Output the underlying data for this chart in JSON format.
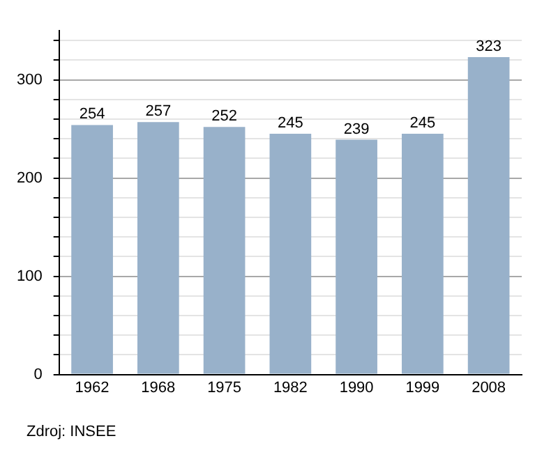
{
  "chart_data": {
    "type": "bar",
    "categories": [
      "1962",
      "1968",
      "1975",
      "1982",
      "1990",
      "1999",
      "2008"
    ],
    "values": [
      254,
      257,
      252,
      245,
      239,
      245,
      323
    ],
    "color": "#98b1ca",
    "ylim": [
      0,
      350
    ],
    "yticks": [
      0,
      {
        "value": 20,
        "label": null
      },
      {
        "value": 40,
        "label": null
      },
      {
        "value": 60,
        "label": null
      },
      {
        "value": 80,
        "label": null
      },
      100,
      {
        "value": 120,
        "label": null
      },
      {
        "value": 140,
        "label": null
      },
      {
        "value": 160,
        "label": null
      },
      {
        "value": 180,
        "label": null
      },
      200,
      {
        "value": 220,
        "label": null
      },
      {
        "value": 240,
        "label": null
      },
      {
        "value": 260,
        "label": null
      },
      {
        "value": 280,
        "label": null
      },
      300,
      {
        "value": 320,
        "label": null
      },
      {
        "value": 340,
        "label": null
      }
    ],
    "grid": "y",
    "data_labels": true,
    "annotations": [
      "Zdroj: INSEE"
    ]
  }
}
